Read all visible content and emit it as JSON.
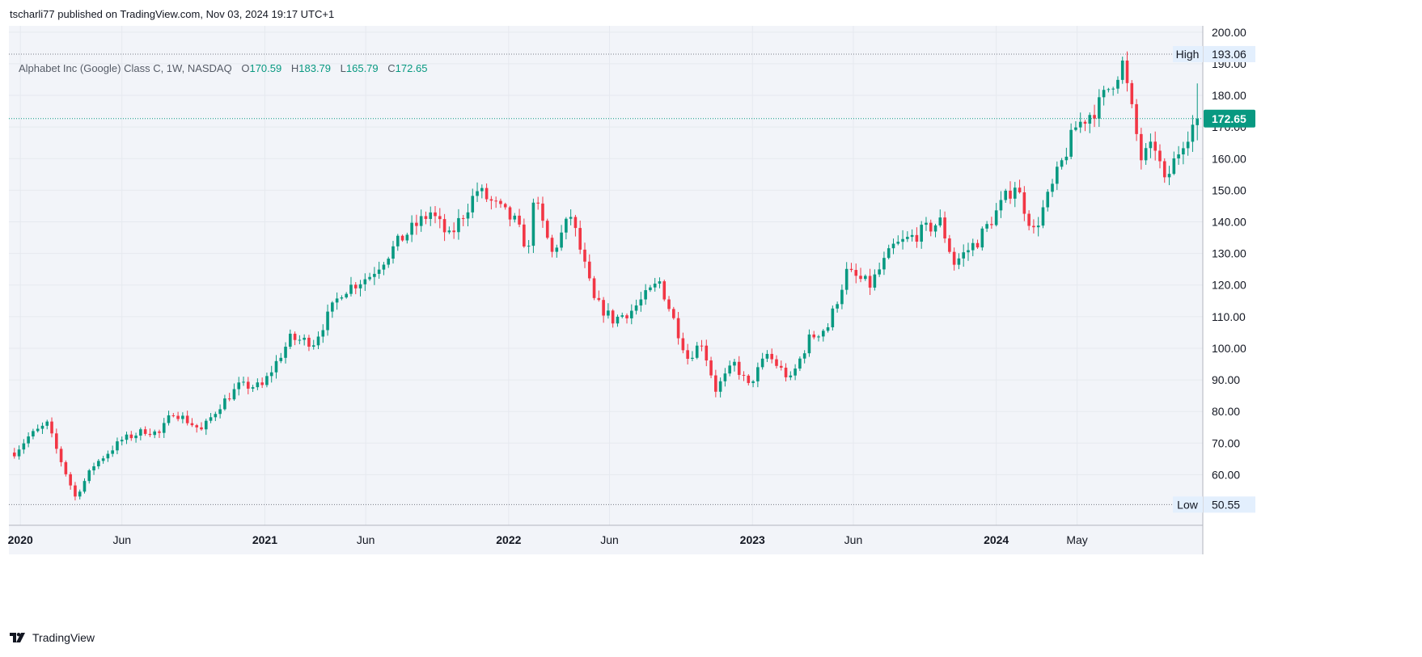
{
  "header": {
    "publisher": "tscharli77 published on TradingView.com, Nov 03, 2024 19:17 UTC+1"
  },
  "legend": {
    "symbol": "Alphabet Inc (Google) Class C, 1W, NASDAQ",
    "o_label": "O",
    "o_value": "170.59",
    "h_label": "H",
    "h_value": "183.79",
    "l_label": "L",
    "l_value": "165.79",
    "c_label": "C",
    "c_value": "172.65"
  },
  "markers": {
    "high_label": "High",
    "high_value": "193.06",
    "low_label": "Low",
    "low_value": "50.55",
    "last_value": "172.65"
  },
  "footer": {
    "brand": "TradingView"
  },
  "colors": {
    "up": "#089981",
    "down": "#f23645",
    "grid": "#e6e9ef",
    "plot_bg": "#f2f4f9",
    "last_price": "#089981"
  },
  "chart_data": {
    "type": "candlestick",
    "timeframe": "1W",
    "x_ticks": [
      {
        "label": "2020",
        "date": "2020-01-01",
        "bold": true
      },
      {
        "label": "Jun",
        "date": "2020-06-01",
        "bold": false
      },
      {
        "label": "2021",
        "date": "2021-01-01",
        "bold": true
      },
      {
        "label": "Jun",
        "date": "2021-06-01",
        "bold": false
      },
      {
        "label": "2022",
        "date": "2022-01-01",
        "bold": true
      },
      {
        "label": "Jun",
        "date": "2022-06-01",
        "bold": false
      },
      {
        "label": "2023",
        "date": "2023-01-01",
        "bold": true
      },
      {
        "label": "Jun",
        "date": "2023-06-01",
        "bold": false
      },
      {
        "label": "2024",
        "date": "2024-01-01",
        "bold": true
      },
      {
        "label": "May",
        "date": "2024-05-01",
        "bold": false
      }
    ],
    "y_ticks": [
      "60.00",
      "70.00",
      "80.00",
      "90.00",
      "100.00",
      "110.00",
      "120.00",
      "130.00",
      "140.00",
      "150.00",
      "160.00",
      "170.00",
      "180.00",
      "190.00",
      "200.00"
    ],
    "ylim": [
      44,
      202
    ],
    "key_points": [
      [
        "2019-12-23",
        67
      ],
      [
        "2020-01-13",
        72
      ],
      [
        "2020-02-10",
        76
      ],
      [
        "2020-02-24",
        68
      ],
      [
        "2020-03-23",
        53
      ],
      [
        "2020-04-20",
        63
      ],
      [
        "2020-06-01",
        71
      ],
      [
        "2020-07-06",
        74
      ],
      [
        "2020-07-27",
        73
      ],
      [
        "2020-08-17",
        80
      ],
      [
        "2020-09-28",
        74
      ],
      [
        "2020-10-26",
        82
      ],
      [
        "2020-11-23",
        88
      ],
      [
        "2020-12-28",
        88
      ],
      [
        "2021-02-08",
        103
      ],
      [
        "2021-03-15",
        102
      ],
      [
        "2021-04-26",
        118
      ],
      [
        "2021-06-07",
        123
      ],
      [
        "2021-07-26",
        135
      ],
      [
        "2021-09-06",
        143
      ],
      [
        "2021-10-04",
        135
      ],
      [
        "2021-11-15",
        150
      ],
      [
        "2022-01-10",
        140
      ],
      [
        "2022-01-31",
        131
      ],
      [
        "2022-02-07",
        148
      ],
      [
        "2022-03-07",
        130
      ],
      [
        "2022-04-04",
        142
      ],
      [
        "2022-05-09",
        115
      ],
      [
        "2022-06-06",
        109
      ],
      [
        "2022-07-04",
        112
      ],
      [
        "2022-08-15",
        121
      ],
      [
        "2022-09-26",
        97
      ],
      [
        "2022-10-17",
        102
      ],
      [
        "2022-11-07",
        87
      ],
      [
        "2022-12-05",
        95
      ],
      [
        "2022-12-26",
        88
      ],
      [
        "2023-01-23",
        98
      ],
      [
        "2023-02-27",
        90
      ],
      [
        "2023-03-27",
        103
      ],
      [
        "2023-04-24",
        107
      ],
      [
        "2023-05-22",
        124
      ],
      [
        "2023-06-26",
        120
      ],
      [
        "2023-07-31",
        132
      ],
      [
        "2023-09-04",
        136
      ],
      [
        "2023-10-09",
        140
      ],
      [
        "2023-10-30",
        127
      ],
      [
        "2023-12-04",
        134
      ],
      [
        "2024-01-29",
        152
      ],
      [
        "2024-02-26",
        137
      ],
      [
        "2024-03-25",
        151
      ],
      [
        "2024-04-29",
        170
      ],
      [
        "2024-06-03",
        177
      ],
      [
        "2024-07-08",
        190
      ],
      [
        "2024-08-05",
        160
      ],
      [
        "2024-08-26",
        164
      ],
      [
        "2024-09-09",
        152
      ],
      [
        "2024-10-07",
        166
      ],
      [
        "2024-10-28",
        172.65
      ]
    ],
    "last_candle": {
      "o": 170.59,
      "h": 183.79,
      "l": 165.79,
      "c": 172.65
    },
    "all_time_high": 193.06,
    "period_low": 50.55
  }
}
